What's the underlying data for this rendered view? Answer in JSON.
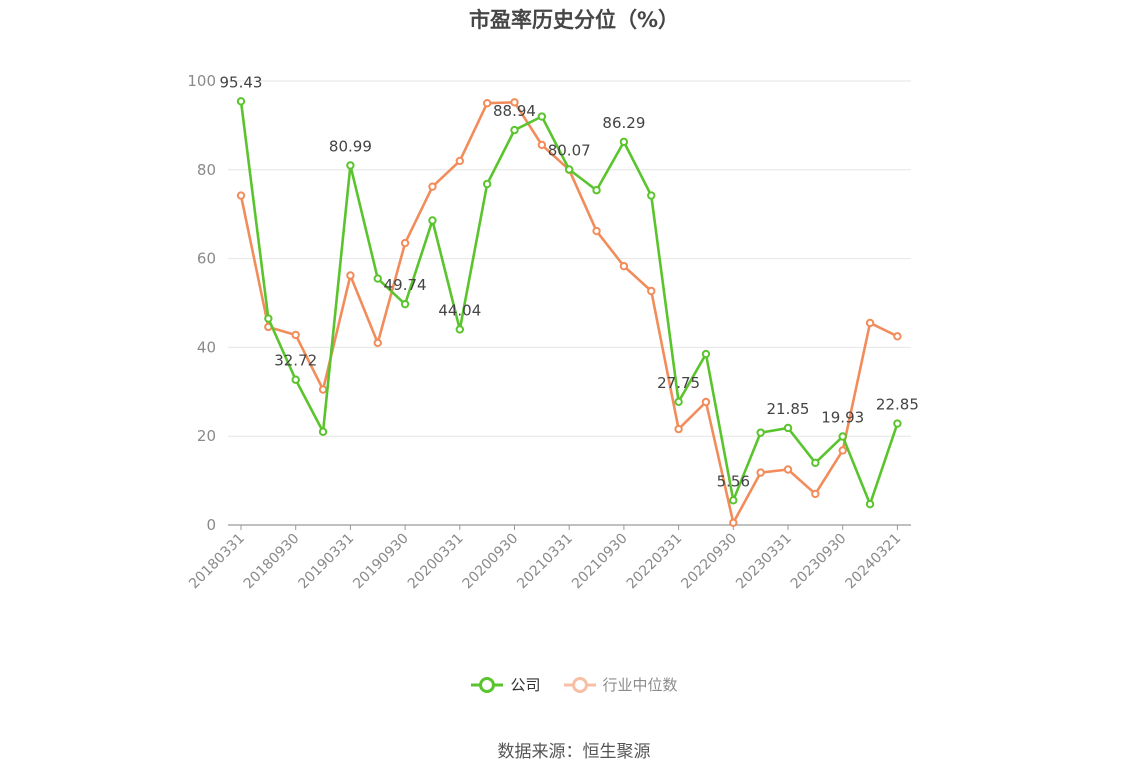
{
  "chart_data": {
    "type": "line",
    "title": "市盈率历史分位（%）",
    "source": "数据来源：恒生聚源",
    "ylim": [
      0,
      100
    ],
    "yticks": [
      0,
      20,
      40,
      60,
      80,
      100
    ],
    "x": [
      "20180331",
      "20180630",
      "20180930",
      "20181231",
      "20190331",
      "20190630",
      "20190930",
      "20191231",
      "20200331",
      "20200630",
      "20200930",
      "20201231",
      "20210331",
      "20210630",
      "20210930",
      "20211231",
      "20220331",
      "20220630",
      "20220930",
      "20221231",
      "20230331",
      "20230630",
      "20230930",
      "20231231",
      "20240321"
    ],
    "xtick_labels": [
      "20180331",
      "20180930",
      "20190331",
      "20190930",
      "20200331",
      "20200930",
      "20210331",
      "20210930",
      "20220331",
      "20220930",
      "20230331",
      "20230930",
      "20240321"
    ],
    "grid": true,
    "legend_position": "bottom",
    "series": [
      {
        "name": "公司",
        "color": "#5ac42d",
        "values": [
          95.43,
          46.5,
          32.72,
          21.0,
          80.99,
          55.5,
          49.74,
          68.6,
          44.04,
          76.8,
          88.94,
          92.0,
          80.07,
          75.4,
          86.29,
          74.2,
          27.75,
          38.5,
          5.56,
          20.8,
          21.85,
          14.0,
          19.93,
          4.7,
          22.85
        ],
        "labels": [
          "95.43",
          "",
          "32.72",
          "",
          "80.99",
          "",
          "49.74",
          "",
          "44.04",
          "",
          "88.94",
          "",
          "80.07",
          "",
          "86.29",
          "",
          "27.75",
          "",
          "5.56",
          "",
          "21.85",
          "",
          "19.93",
          "",
          "22.85"
        ]
      },
      {
        "name": "行业中位数",
        "color": "#f28c5a",
        "values": [
          74.2,
          44.6,
          42.8,
          30.5,
          56.2,
          41.0,
          63.5,
          76.2,
          82.0,
          95.0,
          95.2,
          85.6,
          80.0,
          66.2,
          58.3,
          52.7,
          21.6,
          27.7,
          0.5,
          11.8,
          12.5,
          7.0,
          16.8,
          45.5,
          42.5
        ]
      }
    ]
  }
}
